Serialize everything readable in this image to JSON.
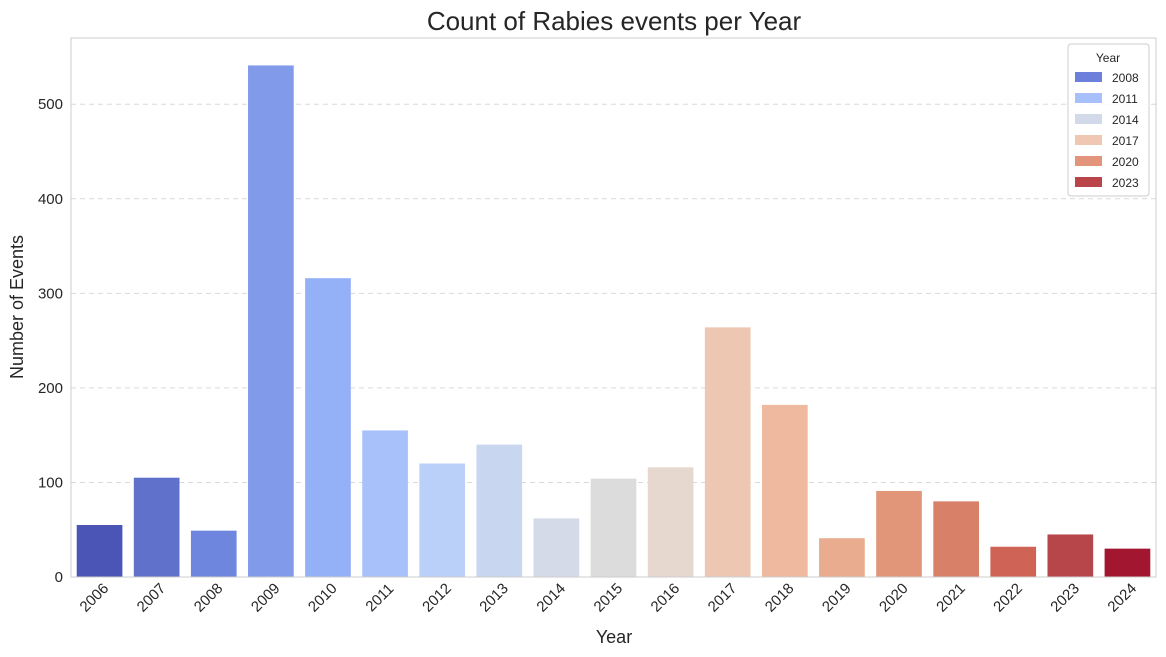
{
  "chart_data": {
    "type": "bar",
    "title": "Count of Rabies events per Year",
    "xlabel": "Year",
    "ylabel": "Number of Events",
    "categories": [
      "2006",
      "2007",
      "2008",
      "2009",
      "2010",
      "2011",
      "2012",
      "2013",
      "2014",
      "2015",
      "2016",
      "2017",
      "2018",
      "2019",
      "2020",
      "2021",
      "2022",
      "2023",
      "2024"
    ],
    "values": [
      55,
      105,
      49,
      541,
      316,
      155,
      120,
      140,
      62,
      104,
      116,
      264,
      182,
      41,
      91,
      80,
      32,
      45,
      30
    ],
    "colors": [
      "#4b55b5",
      "#5f71cb",
      "#6e86de",
      "#819bea",
      "#94b0f6",
      "#a8c1fb",
      "#bad0f8",
      "#c9d6ef",
      "#d4dae8",
      "#dcdcdc",
      "#e6d7cf",
      "#eec7b3",
      "#eeb99e",
      "#e9ac8e",
      "#e29679",
      "#d98069",
      "#cf6456",
      "#b7464b",
      "#a3162f"
    ],
    "ylim": [
      0,
      570
    ],
    "yticks": [
      0,
      100,
      200,
      300,
      400,
      500
    ],
    "grid": "y-dashed",
    "legend": {
      "title": "Year",
      "placement": "top-right",
      "items": [
        {
          "label": "2008",
          "color": "#6b7fdb"
        },
        {
          "label": "2011",
          "color": "#a7c0fb"
        },
        {
          "label": "2014",
          "color": "#d2d9e8"
        },
        {
          "label": "2017",
          "color": "#efc7b2"
        },
        {
          "label": "2020",
          "color": "#e2957a"
        },
        {
          "label": "2023",
          "color": "#b9444a"
        }
      ]
    }
  }
}
